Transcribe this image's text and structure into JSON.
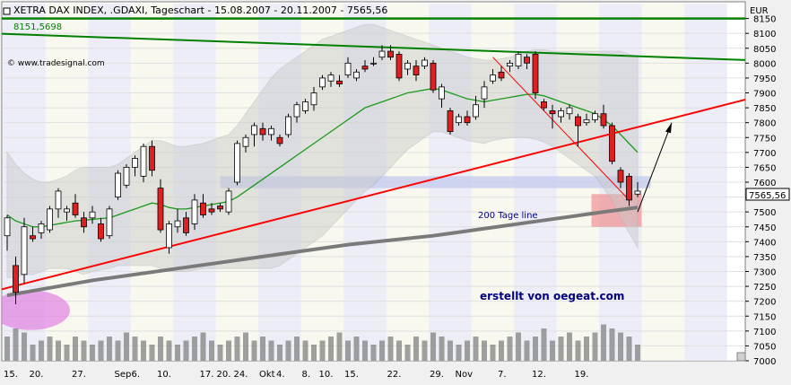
{
  "header": {
    "title": "XETRA DAX INDEX, .GDAXI, Tageschart - 15.08.2007 - 20.11.2007 - 7565,56",
    "resistance_value": "8151,5698",
    "watermark": "© www.tradesignal.com",
    "currency": "EUR"
  },
  "annotations": {
    "ma200_label": "200 Tage line",
    "credit": "erstellt von oegeat.com",
    "last_price": "7565,56"
  },
  "colors": {
    "up_candle": "#ffffff",
    "down_candle": "#e02020",
    "ma20": "#1a9a1a",
    "ma200": "#7a7a7a",
    "support_line": "#ff0000",
    "resistance_line": "#008000",
    "bollinger_band": "#c8c8c8",
    "volume": "#888888",
    "highlight_circle": "#e070e0",
    "target_box": "#f08080"
  },
  "chart_data": {
    "type": "candlestick",
    "y_axis": {
      "unit": "EUR",
      "range": [
        7000,
        8200
      ],
      "tick_labels": [
        "8150",
        "8100",
        "8050",
        "8000",
        "7950",
        "7900",
        "7850",
        "7800",
        "7750",
        "7700",
        "7650",
        "7600",
        "7550",
        "7500",
        "7450",
        "7400",
        "7350",
        "7300",
        "7250",
        "7200",
        "7150",
        "7100",
        "7050",
        "7000"
      ]
    },
    "x_axis": {
      "tick_labels": [
        "15.",
        "20.",
        "27.",
        "Sep",
        "6.",
        "10.",
        "17.",
        "20.",
        "24.",
        "Okt",
        "4.",
        "8.",
        "10.",
        "15.",
        "22.",
        "29.",
        "Nov",
        "7.",
        "12.",
        "19."
      ]
    },
    "candles": [
      {
        "o": 7420,
        "h": 7490,
        "l": 7370,
        "c": 7480
      },
      {
        "o": 7320,
        "h": 7350,
        "l": 7190,
        "c": 7230
      },
      {
        "o": 7290,
        "h": 7480,
        "l": 7260,
        "c": 7450
      },
      {
        "o": 7420,
        "h": 7450,
        "l": 7400,
        "c": 7410
      },
      {
        "o": 7430,
        "h": 7470,
        "l": 7410,
        "c": 7460
      },
      {
        "o": 7440,
        "h": 7520,
        "l": 7430,
        "c": 7510
      },
      {
        "o": 7510,
        "h": 7580,
        "l": 7480,
        "c": 7570
      },
      {
        "o": 7500,
        "h": 7520,
        "l": 7470,
        "c": 7510
      },
      {
        "o": 7530,
        "h": 7560,
        "l": 7480,
        "c": 7490
      },
      {
        "o": 7480,
        "h": 7500,
        "l": 7430,
        "c": 7450
      },
      {
        "o": 7480,
        "h": 7520,
        "l": 7460,
        "c": 7500
      },
      {
        "o": 7460,
        "h": 7480,
        "l": 7400,
        "c": 7410
      },
      {
        "o": 7420,
        "h": 7520,
        "l": 7410,
        "c": 7510
      },
      {
        "o": 7550,
        "h": 7640,
        "l": 7540,
        "c": 7630
      },
      {
        "o": 7590,
        "h": 7660,
        "l": 7580,
        "c": 7650
      },
      {
        "o": 7650,
        "h": 7690,
        "l": 7620,
        "c": 7680
      },
      {
        "o": 7620,
        "h": 7730,
        "l": 7600,
        "c": 7720
      },
      {
        "o": 7720,
        "h": 7740,
        "l": 7620,
        "c": 7640
      },
      {
        "o": 7580,
        "h": 7610,
        "l": 7430,
        "c": 7440
      },
      {
        "o": 7380,
        "h": 7470,
        "l": 7360,
        "c": 7460
      },
      {
        "o": 7450,
        "h": 7510,
        "l": 7430,
        "c": 7470
      },
      {
        "o": 7480,
        "h": 7500,
        "l": 7420,
        "c": 7430
      },
      {
        "o": 7460,
        "h": 7560,
        "l": 7440,
        "c": 7540
      },
      {
        "o": 7530,
        "h": 7560,
        "l": 7480,
        "c": 7490
      },
      {
        "o": 7510,
        "h": 7530,
        "l": 7490,
        "c": 7500
      },
      {
        "o": 7520,
        "h": 7530,
        "l": 7500,
        "c": 7510
      },
      {
        "o": 7500,
        "h": 7580,
        "l": 7490,
        "c": 7570
      },
      {
        "o": 7600,
        "h": 7740,
        "l": 7590,
        "c": 7730
      },
      {
        "o": 7720,
        "h": 7760,
        "l": 7700,
        "c": 7750
      },
      {
        "o": 7760,
        "h": 7800,
        "l": 7720,
        "c": 7790
      },
      {
        "o": 7780,
        "h": 7800,
        "l": 7740,
        "c": 7760
      },
      {
        "o": 7760,
        "h": 7790,
        "l": 7740,
        "c": 7780
      },
      {
        "o": 7750,
        "h": 7760,
        "l": 7720,
        "c": 7730
      },
      {
        "o": 7760,
        "h": 7830,
        "l": 7750,
        "c": 7820
      },
      {
        "o": 7820,
        "h": 7870,
        "l": 7800,
        "c": 7860
      },
      {
        "o": 7840,
        "h": 7880,
        "l": 7830,
        "c": 7870
      },
      {
        "o": 7860,
        "h": 7920,
        "l": 7840,
        "c": 7900
      },
      {
        "o": 7920,
        "h": 7960,
        "l": 7910,
        "c": 7950
      },
      {
        "o": 7940,
        "h": 7970,
        "l": 7920,
        "c": 7960
      },
      {
        "o": 7940,
        "h": 7960,
        "l": 7920,
        "c": 7930
      },
      {
        "o": 7960,
        "h": 8020,
        "l": 7950,
        "c": 8000
      },
      {
        "o": 7950,
        "h": 7980,
        "l": 7940,
        "c": 7970
      },
      {
        "o": 7990,
        "h": 8010,
        "l": 7970,
        "c": 7980
      },
      {
        "o": 8000,
        "h": 8020,
        "l": 7990,
        "c": 8000
      },
      {
        "o": 8020,
        "h": 8060,
        "l": 8010,
        "c": 8040
      },
      {
        "o": 8040,
        "h": 8060,
        "l": 8010,
        "c": 8020
      },
      {
        "o": 8030,
        "h": 8040,
        "l": 7940,
        "c": 7950
      },
      {
        "o": 7980,
        "h": 8010,
        "l": 7960,
        "c": 8000
      },
      {
        "o": 7990,
        "h": 8010,
        "l": 7940,
        "c": 7960
      },
      {
        "o": 7990,
        "h": 8020,
        "l": 7980,
        "c": 8010
      },
      {
        "o": 8000,
        "h": 8010,
        "l": 7900,
        "c": 7910
      },
      {
        "o": 7880,
        "h": 7930,
        "l": 7850,
        "c": 7920
      },
      {
        "o": 7840,
        "h": 7850,
        "l": 7760,
        "c": 7770
      },
      {
        "o": 7800,
        "h": 7830,
        "l": 7790,
        "c": 7820
      },
      {
        "o": 7820,
        "h": 7840,
        "l": 7790,
        "c": 7800
      },
      {
        "o": 7820,
        "h": 7890,
        "l": 7810,
        "c": 7860
      },
      {
        "o": 7880,
        "h": 7940,
        "l": 7850,
        "c": 7920
      },
      {
        "o": 7940,
        "h": 7980,
        "l": 7930,
        "c": 7960
      },
      {
        "o": 7970,
        "h": 7990,
        "l": 7940,
        "c": 7950
      },
      {
        "o": 7990,
        "h": 8010,
        "l": 7970,
        "c": 8000
      },
      {
        "o": 7990,
        "h": 8040,
        "l": 7980,
        "c": 8030
      },
      {
        "o": 8020,
        "h": 8030,
        "l": 7980,
        "c": 8000
      },
      {
        "o": 8030,
        "h": 8040,
        "l": 7880,
        "c": 7900
      },
      {
        "o": 7870,
        "h": 7880,
        "l": 7840,
        "c": 7850
      },
      {
        "o": 7840,
        "h": 7860,
        "l": 7780,
        "c": 7830
      },
      {
        "o": 7820,
        "h": 7850,
        "l": 7800,
        "c": 7840
      },
      {
        "o": 7830,
        "h": 7860,
        "l": 7810,
        "c": 7850
      },
      {
        "o": 7820,
        "h": 7830,
        "l": 7720,
        "c": 7790
      },
      {
        "o": 7800,
        "h": 7830,
        "l": 7790,
        "c": 7810
      },
      {
        "o": 7810,
        "h": 7840,
        "l": 7800,
        "c": 7830
      },
      {
        "o": 7830,
        "h": 7860,
        "l": 7780,
        "c": 7790
      },
      {
        "o": 7790,
        "h": 7800,
        "l": 7660,
        "c": 7670
      },
      {
        "o": 7640,
        "h": 7650,
        "l": 7580,
        "c": 7600
      },
      {
        "o": 7620,
        "h": 7630,
        "l": 7520,
        "c": 7540
      },
      {
        "o": 7560,
        "h": 7600,
        "l": 7550,
        "c": 7570
      }
    ],
    "ma20": [
      7490,
      7470,
      7460,
      7450,
      7450,
      7455,
      7460,
      7465,
      7470,
      7472,
      7475,
      7478,
      7480,
      7490,
      7500,
      7510,
      7520,
      7530,
      7525,
      7515,
      7510,
      7510,
      7515,
      7520,
      7525,
      7530,
      7535,
      7550,
      7570,
      7590,
      7610,
      7630,
      7650,
      7670,
      7690,
      7710,
      7730,
      7750,
      7770,
      7790,
      7810,
      7830,
      7850,
      7860,
      7870,
      7880,
      7890,
      7900,
      7905,
      7910,
      7915,
      7910,
      7900,
      7890,
      7880,
      7875,
      7870,
      7875,
      7880,
      7885,
      7890,
      7895,
      7895,
      7890,
      7880,
      7870,
      7860,
      7850,
      7840,
      7830,
      7810,
      7790,
      7760,
      7730,
      7700
    ],
    "bollinger_upper": [
      7700,
      7660,
      7630,
      7610,
      7600,
      7600,
      7610,
      7620,
      7640,
      7650,
      7650,
      7650,
      7650,
      7660,
      7680,
      7700,
      7720,
      7740,
      7740,
      7730,
      7720,
      7720,
      7725,
      7730,
      7740,
      7750,
      7760,
      7790,
      7830,
      7870,
      7910,
      7950,
      7980,
      8000,
      8020,
      8040,
      8060,
      8080,
      8090,
      8100,
      8110,
      8120,
      8130,
      8130,
      8120,
      8110,
      8100,
      8090,
      8080,
      8070,
      8060,
      8050,
      8040,
      8030,
      8020,
      8015,
      8010,
      8010,
      8015,
      8020,
      8030,
      8040,
      8045,
      8045,
      8040,
      8040,
      8040,
      8040,
      8040,
      8040,
      8040,
      8040,
      8040,
      8030,
      8020
    ],
    "bollinger_lower": [
      7280,
      7280,
      7290,
      7290,
      7300,
      7310,
      7310,
      7310,
      7300,
      7290,
      7300,
      7306,
      7310,
      7320,
      7320,
      7320,
      7320,
      7320,
      7310,
      7300,
      7300,
      7300,
      7305,
      7310,
      7310,
      7310,
      7310,
      7310,
      7310,
      7310,
      7310,
      7310,
      7320,
      7340,
      7360,
      7380,
      7400,
      7420,
      7450,
      7480,
      7510,
      7540,
      7570,
      7590,
      7620,
      7650,
      7680,
      7710,
      7730,
      7750,
      7770,
      7770,
      7760,
      7750,
      7740,
      7735,
      7730,
      7740,
      7745,
      7750,
      7750,
      7750,
      7745,
      7735,
      7720,
      7700,
      7680,
      7660,
      7640,
      7620,
      7580,
      7540,
      7480,
      7430,
      7380
    ],
    "ma200": [
      {
        "i": 0,
        "v": 7220
      },
      {
        "i": 10,
        "v": 7270
      },
      {
        "i": 20,
        "v": 7310
      },
      {
        "i": 30,
        "v": 7350
      },
      {
        "i": 40,
        "v": 7390
      },
      {
        "i": 50,
        "v": 7420
      },
      {
        "i": 60,
        "v": 7460
      },
      {
        "i": 70,
        "v": 7500
      },
      {
        "i": 74,
        "v": 7515
      }
    ],
    "volume": [
      30,
      40,
      35,
      20,
      25,
      30,
      25,
      20,
      30,
      25,
      20,
      25,
      30,
      25,
      35,
      30,
      25,
      20,
      30,
      25,
      20,
      25,
      30,
      35,
      25,
      20,
      25,
      30,
      35,
      25,
      30,
      25,
      20,
      25,
      30,
      25,
      20,
      25,
      30,
      35,
      25,
      30,
      25,
      20,
      25,
      30,
      25,
      20,
      30,
      25,
      35,
      30,
      25,
      20,
      25,
      30,
      25,
      20,
      25,
      30,
      35,
      25,
      30,
      40,
      25,
      30,
      35,
      25,
      30,
      35,
      45,
      40,
      35,
      30,
      20
    ],
    "support_line": {
      "from": {
        "i": -2,
        "v": 7230
      },
      "to": {
        "i": 87,
        "v": 7880
      }
    },
    "resistance_line": {
      "from": {
        "i": -2,
        "v": 8150
      },
      "to": {
        "i": 87,
        "v": 8150
      }
    },
    "downtrend_line": {
      "from": {
        "i": -2,
        "v": 8100
      },
      "to": {
        "i": 87,
        "v": 8010
      }
    }
  }
}
